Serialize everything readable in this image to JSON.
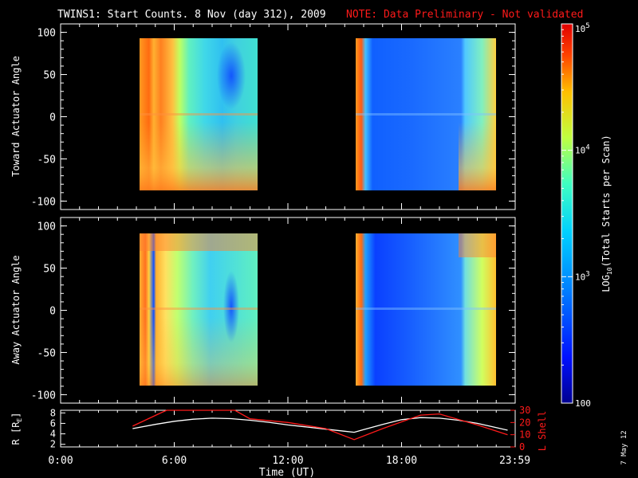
{
  "title": {
    "main": "TWINS1: Start Counts.  8 Nov (day 312), 2009",
    "note": "NOTE: Data Preliminary - Not validated",
    "note_color": "#ff1a1a"
  },
  "date_stamp": "7 May 12",
  "chart_data": [
    {
      "type": "heatmap",
      "ylabel": "Toward Actuator Angle",
      "ylim": [
        -110,
        110
      ],
      "yticks": [
        "100",
        "50",
        "0",
        "-50",
        "-100"
      ],
      "ytick_values": [
        100,
        50,
        0,
        -50,
        -100
      ],
      "xlim_hours": [
        0,
        24
      ],
      "data_blocks_hours": [
        [
          3.85,
          10.3
        ],
        [
          15.4,
          21.9
        ]
      ],
      "angle_range": [
        -90,
        90
      ]
    },
    {
      "type": "heatmap",
      "ylabel": "Away Actuator Angle",
      "ylim": [
        -110,
        110
      ],
      "yticks": [
        "100",
        "50",
        "0",
        "-50",
        "-100"
      ],
      "ytick_values": [
        100,
        50,
        0,
        -50,
        -100
      ],
      "xlim_hours": [
        0,
        24
      ],
      "data_blocks_hours": [
        [
          3.85,
          10.3
        ],
        [
          15.4,
          21.9
        ]
      ],
      "angle_range": [
        -90,
        90
      ]
    },
    {
      "type": "line",
      "left_ylabel": "R [R",
      "left_ylabel_sub": "E",
      "left_ylabel_end": "]",
      "left_yticks": [
        "8",
        "6",
        "4",
        "2"
      ],
      "left_ytick_values": [
        8,
        6,
        4,
        2
      ],
      "left_ylim": [
        1.5,
        8.5
      ],
      "right_ylabel": "L Shell",
      "right_yticks": [
        "30",
        "20",
        "10",
        "0"
      ],
      "right_ytick_values": [
        30,
        20,
        10,
        0
      ],
      "right_ylim": [
        0,
        30
      ],
      "xlabel": "Time (UT)",
      "xticks": [
        "0:00",
        "6:00",
        "12:00",
        "18:00",
        "23:59"
      ],
      "xtick_values": [
        0,
        6,
        12,
        18,
        23.98
      ],
      "series": [
        {
          "axis": "left",
          "color": "#ffffff",
          "x": [
            3.8,
            5,
            6,
            7,
            8,
            9,
            10,
            11,
            12,
            13,
            14,
            15,
            15.5,
            16,
            17,
            18,
            19,
            20,
            21,
            22,
            23,
            23.6
          ],
          "y": [
            5.0,
            5.8,
            6.4,
            6.8,
            7.0,
            6.9,
            6.6,
            6.2,
            5.7,
            5.3,
            4.9,
            4.5,
            4.3,
            4.8,
            5.8,
            6.7,
            7.1,
            7.0,
            6.6,
            6.0,
            5.2,
            4.7
          ]
        },
        {
          "axis": "right",
          "color": "#ff1a1a",
          "x": [
            3.8,
            5.3,
            5.6,
            9.2,
            10,
            12,
            14,
            15.5,
            17,
            19,
            20,
            22,
            23.6
          ],
          "y": [
            17,
            28,
            31,
            31,
            23,
            20,
            15,
            6,
            15,
            26,
            27,
            18,
            10
          ]
        }
      ]
    }
  ],
  "colorbar": {
    "ticks": [
      "10^5",
      "10^4",
      "10^3",
      "100"
    ],
    "tick_values": [
      100000,
      10000,
      1000,
      100
    ],
    "label_pre": "LOG",
    "label_sub": "10",
    "label_post": "(Total Starts per Scan)",
    "scale": "log",
    "range": [
      100,
      100000
    ]
  }
}
